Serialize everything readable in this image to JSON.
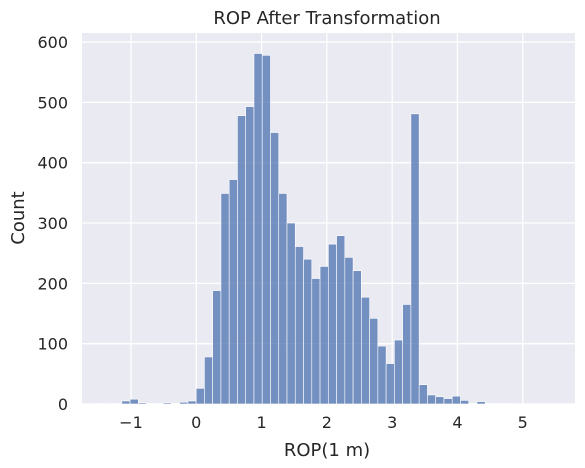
{
  "chart_data": {
    "type": "bar",
    "title": "ROP After Transformation",
    "xlabel": "ROP(1 m)",
    "ylabel": "Count",
    "xlim": [
      -1.75,
      5.8
    ],
    "ylim": [
      0,
      615
    ],
    "xticks": [
      -1,
      0,
      1,
      2,
      3,
      4,
      5
    ],
    "xtick_labels": [
      "−1",
      "0",
      "1",
      "2",
      "3",
      "4",
      "5"
    ],
    "yticks": [
      0,
      100,
      200,
      300,
      400,
      500,
      600
    ],
    "ytick_labels": [
      "0",
      "100",
      "200",
      "300",
      "400",
      "500",
      "600"
    ],
    "grid": true,
    "background": "#eaeaf2",
    "bar_color": "#4c72b0",
    "bins": {
      "start": -1.52,
      "width": 0.1265,
      "counts": [
        1,
        0,
        1,
        5,
        8,
        2,
        1,
        1,
        2,
        1,
        3,
        5,
        26,
        78,
        188,
        349,
        372,
        478,
        493,
        581,
        578,
        450,
        349,
        300,
        261,
        240,
        208,
        228,
        265,
        279,
        243,
        221,
        177,
        142,
        96,
        67,
        106,
        165,
        481,
        32,
        15,
        12,
        9,
        13,
        6,
        1,
        4,
        1,
        1,
        1
      ]
    }
  }
}
